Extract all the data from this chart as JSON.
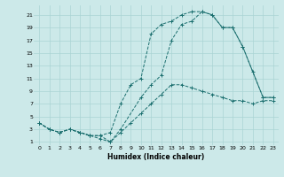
{
  "xlabel": "Humidex (Indice chaleur)",
  "ylabel_ticks": [
    1,
    3,
    5,
    7,
    9,
    11,
    13,
    15,
    17,
    19,
    21
  ],
  "xticks": [
    0,
    1,
    2,
    3,
    4,
    5,
    6,
    7,
    8,
    9,
    10,
    11,
    12,
    13,
    14,
    15,
    16,
    17,
    18,
    19,
    20,
    21,
    22,
    23
  ],
  "xlim": [
    -0.5,
    23.5
  ],
  "ylim": [
    0.5,
    22.5
  ],
  "background_color": "#cce9e9",
  "grid_color": "#aad4d4",
  "line_color": "#1a6e6e",
  "line1_x": [
    0,
    1,
    2,
    3,
    4,
    5,
    6,
    7,
    8,
    9,
    10,
    11,
    12,
    13,
    14,
    15,
    16,
    17,
    18,
    19,
    20,
    21,
    22,
    23
  ],
  "line1_y": [
    4,
    3,
    2.5,
    3,
    2.5,
    2,
    1.5,
    1,
    2.5,
    4,
    5.5,
    7,
    8.5,
    10,
    10,
    9.5,
    9,
    8.5,
    8,
    7.5,
    7.5,
    7,
    7.5,
    7.5
  ],
  "line2_x": [
    0,
    1,
    2,
    3,
    4,
    5,
    6,
    7,
    8,
    9,
    10,
    11,
    12,
    13,
    14,
    15,
    16,
    17,
    18,
    19,
    20,
    22,
    23
  ],
  "line2_y": [
    4,
    3,
    2.5,
    3,
    2.5,
    2,
    2,
    2.5,
    7,
    10,
    11,
    18,
    19.5,
    20,
    21,
    21.5,
    21.5,
    21,
    19,
    19,
    16,
    8,
    8
  ],
  "line3_x": [
    0,
    1,
    2,
    3,
    4,
    5,
    6,
    7,
    8,
    10,
    11,
    12,
    13,
    14,
    15,
    16,
    17,
    18,
    19,
    20,
    21,
    22,
    23
  ],
  "line3_y": [
    4,
    3,
    2.5,
    3,
    2.5,
    2,
    2,
    1,
    3,
    8,
    10,
    11.5,
    17,
    19.5,
    20,
    21.5,
    21,
    19,
    19,
    16,
    12,
    8,
    8
  ]
}
